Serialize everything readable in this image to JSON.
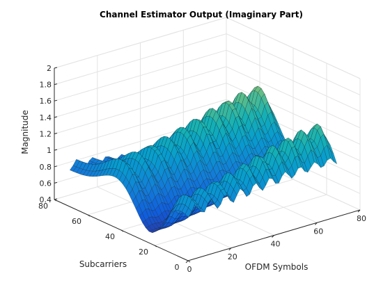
{
  "chart_data": {
    "type": "surface",
    "title": "Channel Estimator Output (Imaginary Part)",
    "xlabel": "OFDM Symbols",
    "ylabel": "Subcarriers",
    "zlabel": "Magnitude",
    "xlim": [
      0,
      80
    ],
    "ylim": [
      0,
      80
    ],
    "zlim": [
      0.4,
      2
    ],
    "x_ticks": [
      "0",
      "20",
      "40",
      "60",
      "80"
    ],
    "y_ticks": [
      "0",
      "20",
      "40",
      "60",
      "80"
    ],
    "z_ticks": [
      "0.4",
      "0.6",
      "0.8",
      "1",
      "1.2",
      "1.4",
      "1.6",
      "1.8",
      "2"
    ],
    "grid": true,
    "colormap": "parula",
    "data_extent": {
      "symbols": [
        1,
        70
      ],
      "subcarriers": [
        1,
        72
      ]
    },
    "surface_model": {
      "baseline_at_symbol_1": 0.95,
      "baseline_at_symbol_70": 0.6,
      "subcarrier_peak_positions": [
        44,
        8
      ],
      "peak_height_low_symbol": 1.2,
      "peak_height_high_symbol": 1.6,
      "subcarrier_trough_position": 24,
      "trough_level_low_symbol": 0.5,
      "trough_level_high_symbol": 0.8,
      "symbol_ridge_count": 10
    }
  }
}
